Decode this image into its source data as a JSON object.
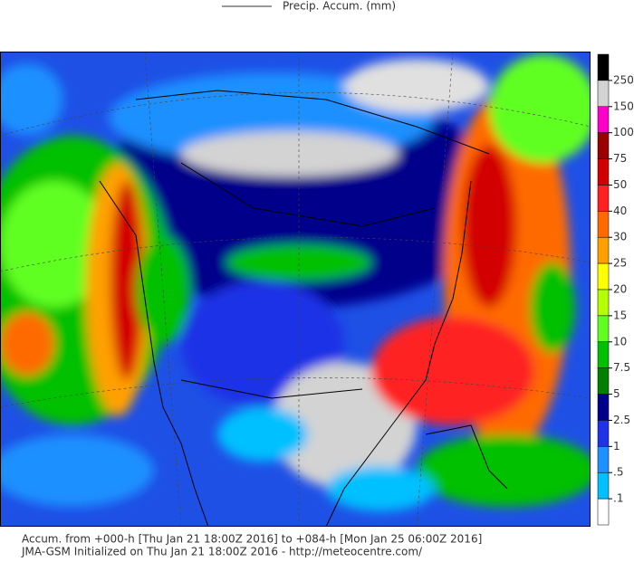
{
  "header": {
    "title": "Precip. Accum. (mm)"
  },
  "colorbar": {
    "labels": [
      "250",
      "150",
      "100",
      "75",
      "50",
      "40",
      "30",
      "25",
      "20",
      "15",
      "10",
      "7.5",
      "5",
      "2.5",
      "1",
      ".5",
      ".1"
    ],
    "colors": [
      "#000000",
      "#d3d3d3",
      "#ff00cc",
      "#9b0000",
      "#d30000",
      "#ff2020",
      "#ff6a00",
      "#ffa000",
      "#ffff00",
      "#b4ff00",
      "#60ff20",
      "#00c000",
      "#008000",
      "#00008b",
      "#1e32e6",
      "#1e90ff",
      "#00c0ff",
      "#ffffff"
    ]
  },
  "footer": {
    "lines": [
      "Accum. from +000-h [Thu Jan 21 18:00Z 2016] to +084-h [Mon Jan 25 06:00Z 2016]",
      "JMA-GSM Initialized on Thu Jan 21 18:00Z 2016 - http://meteocentre.com/"
    ]
  }
}
